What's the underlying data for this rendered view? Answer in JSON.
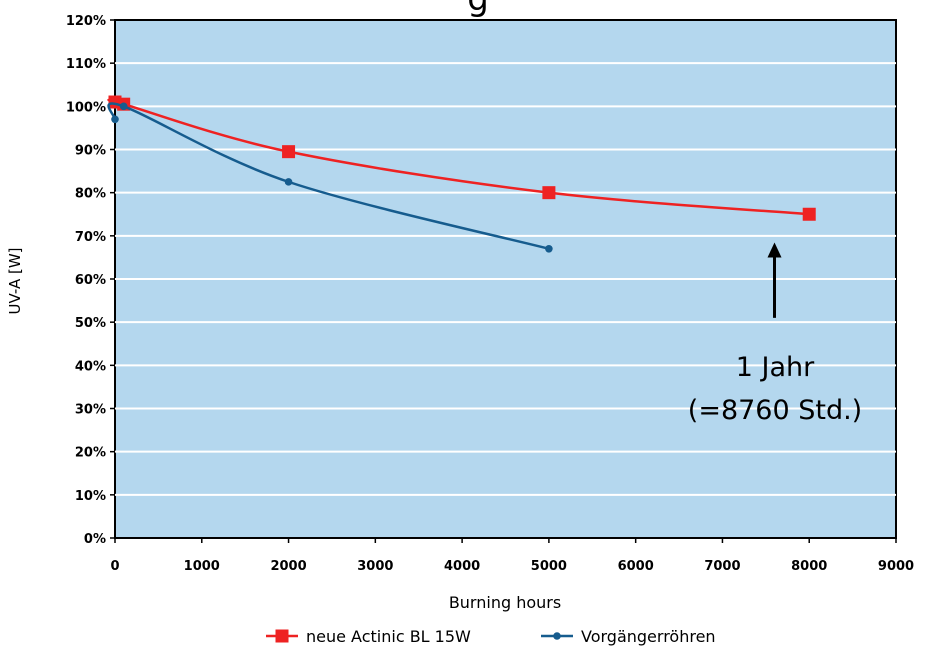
{
  "chart_data": {
    "type": "line",
    "title": "",
    "xlabel": "Burning hours",
    "ylabel": "UV-A [W]",
    "xlim": [
      0,
      9000
    ],
    "ylim": [
      0,
      120
    ],
    "x_ticks": [
      "0",
      "1000",
      "2000",
      "3000",
      "4000",
      "5000",
      "6000",
      "7000",
      "8000",
      "9000"
    ],
    "y_ticks": [
      "0%",
      "10%",
      "20%",
      "30%",
      "40%",
      "50%",
      "60%",
      "70%",
      "80%",
      "90%",
      "100%",
      "110%",
      "120%"
    ],
    "grid": true,
    "plot_background": "#b4d7ee",
    "legend_position": "bottom",
    "series": [
      {
        "name": "neue Actinic BL 15W",
        "color": "#ee2222",
        "marker": "square",
        "points": [
          [
            0,
            101
          ],
          [
            100,
            100.5
          ],
          [
            2000,
            89.5
          ],
          [
            5000,
            80
          ],
          [
            8000,
            75
          ]
        ]
      },
      {
        "name": "Vorgängerröhren",
        "color": "#165c8e",
        "marker": "circle",
        "points": [
          [
            0,
            97
          ],
          [
            100,
            100
          ],
          [
            2000,
            82.5
          ],
          [
            5000,
            67
          ]
        ]
      }
    ],
    "annotation": {
      "line1": "1 Jahr",
      "line2": "(=8760 Std.)",
      "arrow_from": [
        7600,
        51
      ],
      "arrow_to": [
        7600,
        68
      ]
    },
    "title_partial_visible": "g"
  }
}
